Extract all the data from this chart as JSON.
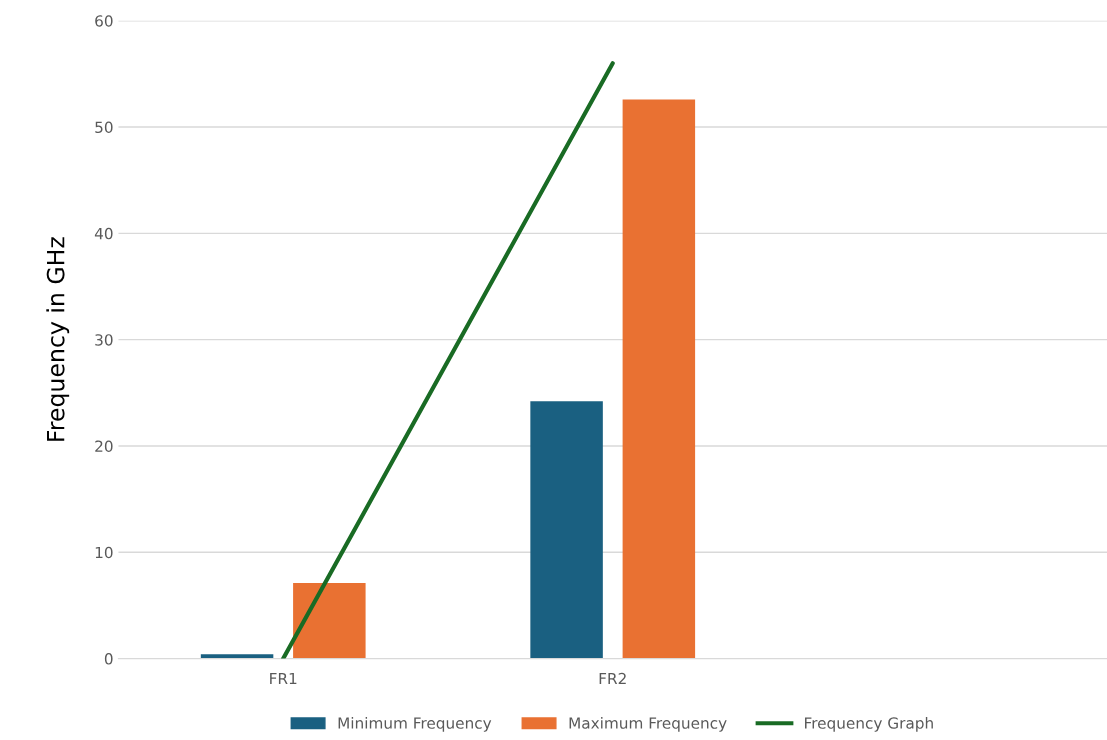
{
  "chart_data": {
    "type": "bar",
    "ylabel": "Frequency in GHz",
    "categories": [
      "FR1",
      "FR2",
      null
    ],
    "series": [
      {
        "name": "Minimum Frequency",
        "color": "#1a6081",
        "values": [
          0.4,
          24.2,
          null
        ]
      },
      {
        "name": "Maximum Frequency",
        "color": "#e97132",
        "values": [
          7.1,
          52.6,
          null
        ]
      },
      {
        "name": "Frequency Graph",
        "type": "line",
        "color": "#196b24",
        "values": [
          0,
          56,
          null
        ]
      }
    ],
    "ylim": [
      0,
      60
    ],
    "yticks": [
      0,
      10,
      20,
      30,
      40,
      50,
      60
    ],
    "grid": "y",
    "legend": "bottom"
  }
}
